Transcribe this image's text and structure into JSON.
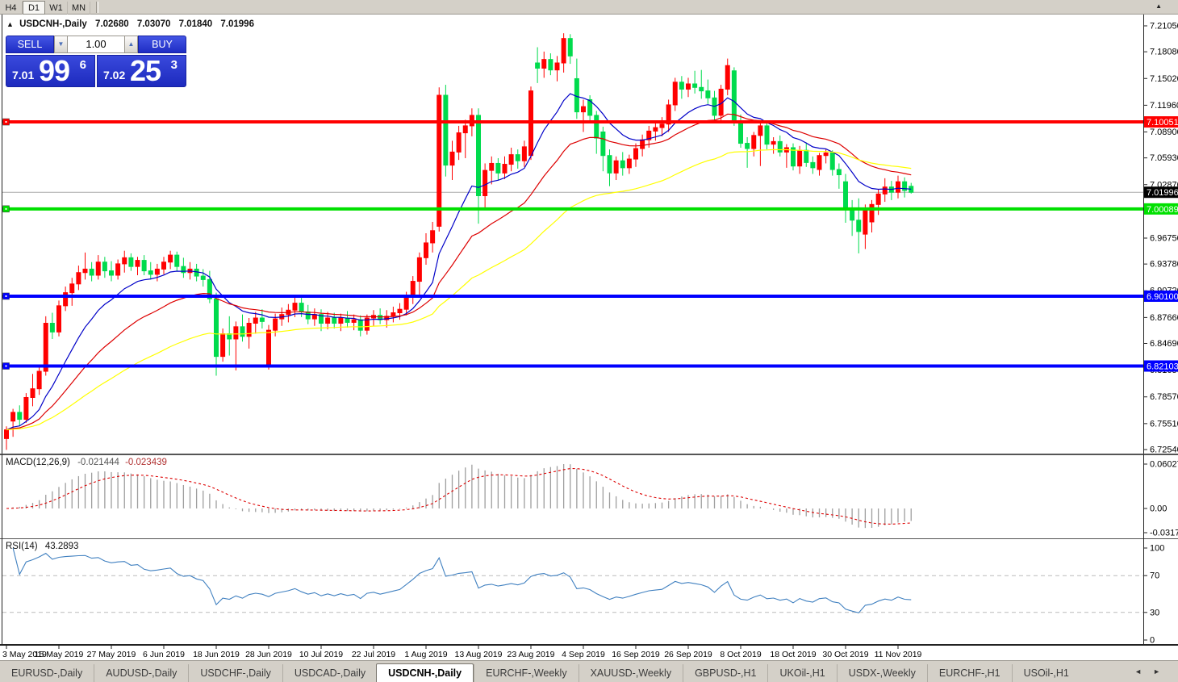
{
  "toolbar": {
    "timeframes": [
      "H4",
      "D1",
      "W1",
      "MN"
    ],
    "active_timeframe": "D1",
    "collapse_icon": "▲"
  },
  "chart": {
    "title": {
      "arrow": "▲",
      "symbol": "USDCNH-,Daily",
      "open": "7.02680",
      "high": "7.03070",
      "low": "7.01840",
      "close": "7.01996"
    },
    "trade_panel": {
      "sell_label": "SELL",
      "buy_label": "BUY",
      "volume": "1.00",
      "spinner_down": "▼",
      "spinner_up": "▲",
      "sell_price": {
        "small": "7.01",
        "big": "99",
        "sup": "6"
      },
      "buy_price": {
        "small": "7.02",
        "big": "25",
        "sup": "3"
      }
    },
    "price_axis": {
      "top_price": 7.2105,
      "bottom_price": 6.7254,
      "labels": [
        "7.21050",
        "7.18080",
        "7.15020",
        "7.11960",
        "7.08900",
        "7.05930",
        "7.02870",
        "6.99820",
        "6.96750",
        "6.93780",
        "6.90720",
        "6.87660",
        "6.84690",
        "6.81650",
        "6.78570",
        "6.75510",
        "6.72540"
      ]
    },
    "levels": [
      {
        "label": "7.10051",
        "price": 7.10051,
        "color": "#FF0000",
        "width": 4
      },
      {
        "label": "7.00089",
        "price": 7.00089,
        "color": "#00E000",
        "width": 4
      },
      {
        "label": "6.90100",
        "price": 6.901,
        "color": "#0000FF",
        "width": 4
      },
      {
        "label": "6.82103",
        "price": 6.82103,
        "color": "#0000FF",
        "width": 4
      }
    ],
    "current_price": {
      "label": "7.01996",
      "price": 7.01996
    },
    "colors": {
      "bull": "#FF0000",
      "bear": "#00DB4D",
      "ma_fast": "#0000C8",
      "ma_mid": "#DD0000",
      "ma_slow": "#FFFF00",
      "macd_bar": "#9E9E9E",
      "macd_signal": "#DD0000",
      "rsi_line": "#4080C0",
      "current_line": "#AAAAAA",
      "grid_dash": "#BBBBBB"
    },
    "ma_periods": {
      "fast": 12,
      "mid": 26,
      "slow": 55
    }
  },
  "chart_data": {
    "type": "candlestick",
    "title": "USDCNH-,Daily",
    "ohlc": [
      [
        6.738,
        6.752,
        6.725,
        6.748
      ],
      [
        6.758,
        6.772,
        6.74,
        6.768
      ],
      [
        6.768,
        6.776,
        6.752,
        6.76
      ],
      [
        6.76,
        6.79,
        6.756,
        6.785
      ],
      [
        6.785,
        6.812,
        6.775,
        6.795
      ],
      [
        6.795,
        6.822,
        6.788,
        6.815
      ],
      [
        6.815,
        6.878,
        6.81,
        6.87
      ],
      [
        6.87,
        6.882,
        6.852,
        6.86
      ],
      [
        6.86,
        6.896,
        6.855,
        6.89
      ],
      [
        6.89,
        6.912,
        6.884,
        6.905
      ],
      [
        6.905,
        6.922,
        6.89,
        6.915
      ],
      [
        6.915,
        6.936,
        6.908,
        6.928
      ],
      [
        6.928,
        6.951,
        6.92,
        6.932
      ],
      [
        6.932,
        6.94,
        6.918,
        6.925
      ],
      [
        6.925,
        6.948,
        6.92,
        6.94
      ],
      [
        6.94,
        6.946,
        6.922,
        6.93
      ],
      [
        6.93,
        6.941,
        6.918,
        6.925
      ],
      [
        6.925,
        6.943,
        6.92,
        6.938
      ],
      [
        6.938,
        6.953,
        6.928,
        6.945
      ],
      [
        6.945,
        6.95,
        6.93,
        6.935
      ],
      [
        6.935,
        6.946,
        6.925,
        6.942
      ],
      [
        6.942,
        6.948,
        6.925,
        6.93
      ],
      [
        6.93,
        6.94,
        6.92,
        6.926
      ],
      [
        6.926,
        6.938,
        6.918,
        6.932
      ],
      [
        6.932,
        6.946,
        6.926,
        6.94
      ],
      [
        6.94,
        6.953,
        6.932,
        6.948
      ],
      [
        6.948,
        6.952,
        6.93,
        6.935
      ],
      [
        6.935,
        6.945,
        6.922,
        6.928
      ],
      [
        6.928,
        6.94,
        6.92,
        6.932
      ],
      [
        6.932,
        6.938,
        6.918,
        6.924
      ],
      [
        6.924,
        6.932,
        6.912,
        6.92
      ],
      [
        6.92,
        6.93,
        6.893,
        6.898
      ],
      [
        6.898,
        6.905,
        6.81,
        6.832
      ],
      [
        6.832,
        6.864,
        6.826,
        6.858
      ],
      [
        6.858,
        6.878,
        6.833,
        6.852
      ],
      [
        6.852,
        6.872,
        6.816,
        6.866
      ],
      [
        6.866,
        6.88,
        6.849,
        6.855
      ],
      [
        6.855,
        6.876,
        6.841,
        6.87
      ],
      [
        6.87,
        6.883,
        6.858,
        6.876
      ],
      [
        6.876,
        6.886,
        6.864,
        6.872
      ],
      [
        6.822,
        6.868,
        6.817,
        6.862
      ],
      [
        6.862,
        6.881,
        6.855,
        6.875
      ],
      [
        6.875,
        6.888,
        6.867,
        6.88
      ],
      [
        6.88,
        6.892,
        6.871,
        6.885
      ],
      [
        6.885,
        6.901,
        6.877,
        6.893
      ],
      [
        6.893,
        6.899,
        6.877,
        6.883
      ],
      [
        6.883,
        6.891,
        6.869,
        6.875
      ],
      [
        6.875,
        6.887,
        6.867,
        6.88
      ],
      [
        6.88,
        6.886,
        6.861,
        6.87
      ],
      [
        6.87,
        6.883,
        6.863,
        6.876
      ],
      [
        6.876,
        6.882,
        6.864,
        6.87
      ],
      [
        6.87,
        6.881,
        6.861,
        6.876
      ],
      [
        6.876,
        6.884,
        6.865,
        6.871
      ],
      [
        6.871,
        6.88,
        6.862,
        6.874
      ],
      [
        6.874,
        6.879,
        6.855,
        6.862
      ],
      [
        6.862,
        6.88,
        6.857,
        6.876
      ],
      [
        6.876,
        6.885,
        6.867,
        6.879
      ],
      [
        6.879,
        6.887,
        6.869,
        6.874
      ],
      [
        6.874,
        6.885,
        6.865,
        6.878
      ],
      [
        6.878,
        6.889,
        6.871,
        6.882
      ],
      [
        6.882,
        6.893,
        6.874,
        6.886
      ],
      [
        6.886,
        6.906,
        6.879,
        6.9
      ],
      [
        6.9,
        6.924,
        6.892,
        6.918
      ],
      [
        6.918,
        6.951,
        6.899,
        6.945
      ],
      [
        6.945,
        6.973,
        6.937,
        6.962
      ],
      [
        6.962,
        6.986,
        6.951,
        6.976
      ],
      [
        6.981,
        7.14,
        6.975,
        7.131
      ],
      [
        7.131,
        7.143,
        7.038,
        7.051
      ],
      [
        7.051,
        7.079,
        7.034,
        7.066
      ],
      [
        7.066,
        7.096,
        7.057,
        7.088
      ],
      [
        7.088,
        7.103,
        7.059,
        7.096
      ],
      [
        7.096,
        7.116,
        7.084,
        7.108
      ],
      [
        7.108,
        7.116,
        6.984,
        7.016
      ],
      [
        7.016,
        7.053,
        7.001,
        7.045
      ],
      [
        7.045,
        7.061,
        7.029,
        7.053
      ],
      [
        7.053,
        7.059,
        7.034,
        7.042
      ],
      [
        7.042,
        7.061,
        7.035,
        7.052
      ],
      [
        7.052,
        7.071,
        7.044,
        7.063
      ],
      [
        7.063,
        7.069,
        7.047,
        7.056
      ],
      [
        7.056,
        7.079,
        7.049,
        7.072
      ],
      [
        7.062,
        7.141,
        7.057,
        7.136
      ],
      [
        7.168,
        7.186,
        7.145,
        7.162
      ],
      [
        7.162,
        7.181,
        7.151,
        7.172
      ],
      [
        7.172,
        7.179,
        7.154,
        7.16
      ],
      [
        7.16,
        7.176,
        7.147,
        7.168
      ],
      [
        7.168,
        7.202,
        7.157,
        7.196
      ],
      [
        7.196,
        7.201,
        7.167,
        7.176
      ],
      [
        7.15,
        7.173,
        7.104,
        7.112
      ],
      [
        7.112,
        7.126,
        7.089,
        7.118
      ],
      [
        7.126,
        7.131,
        7.102,
        7.108
      ],
      [
        7.108,
        7.113,
        7.064,
        7.082
      ],
      [
        7.089,
        7.095,
        7.044,
        7.062
      ],
      [
        7.062,
        7.069,
        7.027,
        7.042
      ],
      [
        7.042,
        7.061,
        7.034,
        7.056
      ],
      [
        7.056,
        7.066,
        7.039,
        7.048
      ],
      [
        7.048,
        7.063,
        7.041,
        7.058
      ],
      [
        7.058,
        7.076,
        7.049,
        7.07
      ],
      [
        7.07,
        7.086,
        7.061,
        7.08
      ],
      [
        7.08,
        7.096,
        7.071,
        7.09
      ],
      [
        7.09,
        7.101,
        7.079,
        7.094
      ],
      [
        7.094,
        7.106,
        7.084,
        7.098
      ],
      [
        7.098,
        7.126,
        7.089,
        7.12
      ],
      [
        7.12,
        7.151,
        7.113,
        7.146
      ],
      [
        7.146,
        7.153,
        7.127,
        7.138
      ],
      [
        7.138,
        7.151,
        7.129,
        7.144
      ],
      [
        7.144,
        7.159,
        7.133,
        7.14
      ],
      [
        7.14,
        7.16,
        7.127,
        7.136
      ],
      [
        7.136,
        7.149,
        7.121,
        7.128
      ],
      [
        7.128,
        7.136,
        7.101,
        7.108
      ],
      [
        7.108,
        7.143,
        7.099,
        7.138
      ],
      [
        7.138,
        7.173,
        7.131,
        7.165
      ],
      [
        7.159,
        7.163,
        7.096,
        7.102
      ],
      [
        7.102,
        7.109,
        7.071,
        7.076
      ],
      [
        7.076,
        7.083,
        7.048,
        7.07
      ],
      [
        7.07,
        7.089,
        7.061,
        7.085
      ],
      [
        7.085,
        7.101,
        7.05,
        7.096
      ],
      [
        7.096,
        7.099,
        7.069,
        7.075
      ],
      [
        7.075,
        7.083,
        7.064,
        7.078
      ],
      [
        7.078,
        7.085,
        7.061,
        7.066
      ],
      [
        7.066,
        7.075,
        7.048,
        7.071
      ],
      [
        7.071,
        7.076,
        7.045,
        7.05
      ],
      [
        7.05,
        7.073,
        7.041,
        7.068
      ],
      [
        7.068,
        7.077,
        7.049,
        7.054
      ],
      [
        7.054,
        7.061,
        7.041,
        7.048
      ],
      [
        7.046,
        7.065,
        7.039,
        7.062
      ],
      [
        7.062,
        7.069,
        7.053,
        7.065
      ],
      [
        7.065,
        7.068,
        7.039,
        7.046
      ],
      [
        7.046,
        7.053,
        7.024,
        7.04
      ],
      [
        7.032,
        7.041,
        6.985,
        7.002
      ],
      [
        7.002,
        7.011,
        6.97,
        6.988
      ],
      [
        6.988,
        7.013,
        6.95,
        6.975
      ],
      [
        6.972,
        7.006,
        6.955,
        7.002
      ],
      [
        6.986,
        7.011,
        6.974,
        7.006
      ],
      [
        7.006,
        7.023,
        6.994,
        7.018
      ],
      [
        7.018,
        7.036,
        7.009,
        7.026
      ],
      [
        7.026,
        7.033,
        7.011,
        7.02
      ],
      [
        7.02,
        7.039,
        7.013,
        7.032
      ],
      [
        7.032,
        7.037,
        7.014,
        7.022
      ],
      [
        7.0268,
        7.0307,
        7.0184,
        7.01996
      ]
    ]
  },
  "macd": {
    "name": "MACD(12,26,9)",
    "value1": "-0.021444",
    "value2": "-0.023439",
    "axis": {
      "max": "0.060273",
      "zero": "0.00",
      "min": "-0.03172"
    }
  },
  "rsi": {
    "name": "RSI(14)",
    "value": "43.2893",
    "axis": {
      "top": "100",
      "upper": "70",
      "lower": "30",
      "bottom": "0"
    }
  },
  "dates": {
    "labels": [
      {
        "text": "3 May 2019",
        "idx": 0
      },
      {
        "text": "15 May 2019",
        "idx": 8
      },
      {
        "text": "27 May 2019",
        "idx": 16
      },
      {
        "text": "6 Jun 2019",
        "idx": 24
      },
      {
        "text": "18 Jun 2019",
        "idx": 32
      },
      {
        "text": "28 Jun 2019",
        "idx": 40
      },
      {
        "text": "10 Jul 2019",
        "idx": 48
      },
      {
        "text": "22 Jul 2019",
        "idx": 56
      },
      {
        "text": "1 Aug 2019",
        "idx": 64
      },
      {
        "text": "13 Aug 2019",
        "idx": 72
      },
      {
        "text": "23 Aug 2019",
        "idx": 80
      },
      {
        "text": "4 Sep 2019",
        "idx": 88
      },
      {
        "text": "16 Sep 2019",
        "idx": 96
      },
      {
        "text": "26 Sep 2019",
        "idx": 104
      },
      {
        "text": "8 Oct 2019",
        "idx": 112
      },
      {
        "text": "18 Oct 2019",
        "idx": 120
      },
      {
        "text": "30 Oct 2019",
        "idx": 128
      },
      {
        "text": "11 Nov 2019",
        "idx": 136
      }
    ]
  },
  "tabs": {
    "items": [
      "EURUSD-,Daily",
      "AUDUSD-,Daily",
      "USDCHF-,Daily",
      "USDCAD-,Daily",
      "USDCNH-,Daily",
      "EURCHF-,Weekly",
      "XAUUSD-,Weekly",
      "GBPUSD-,H1",
      "UKOil-,H1",
      "USDX-,Weekly",
      "EURCHF-,H1",
      "USOil-,H1"
    ],
    "active": "USDCNH-,Daily",
    "scroll_left": "◄",
    "scroll_right": "►"
  }
}
